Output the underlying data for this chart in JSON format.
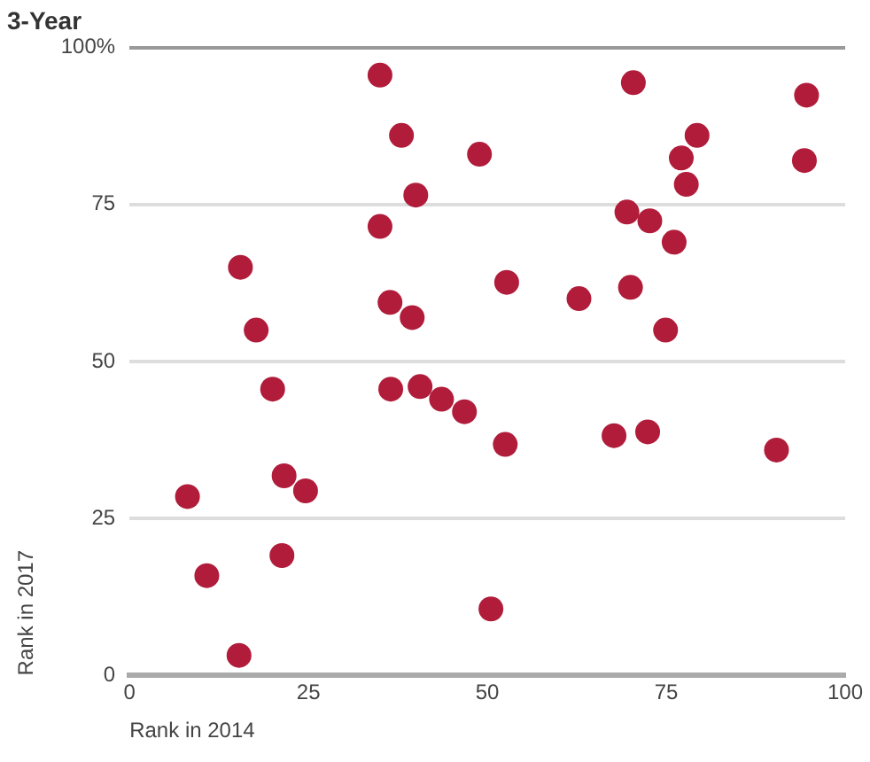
{
  "chart_data": {
    "type": "scatter",
    "title": "3-Year",
    "xlabel": "Rank in 2014",
    "ylabel": "Rank in 2017",
    "x": [
      35,
      38,
      40,
      35,
      15.5,
      17.7,
      36.4,
      39.5,
      20,
      36.5,
      40.6,
      43.6,
      46.8,
      52.5,
      67.7,
      72.4,
      90.4,
      50.5,
      21.6,
      24.6,
      8.1,
      21.3,
      10.8,
      15.3,
      70.4,
      94.6,
      48.9,
      79.3,
      77.1,
      77.8,
      94.3,
      69.5,
      72.7,
      76.1,
      52.7,
      62.8,
      70,
      74.9
    ],
    "series": [
      {
        "color": "#b01c3a",
        "values": [
          95.6,
          86,
          76.5,
          71.5,
          65,
          55,
          59.4,
          57,
          45.6,
          45.6,
          46,
          44,
          42,
          36.8,
          38.2,
          38.8,
          35.9,
          10.6,
          31.8,
          29.4,
          28.5,
          19.1,
          15.9,
          3.2,
          94.4,
          92.4,
          83,
          86,
          82.4,
          78.2,
          82,
          73.8,
          72.4,
          69,
          62.6,
          60,
          61.8,
          55
        ]
      }
    ],
    "xlim": [
      0,
      100
    ],
    "xticks": [
      0,
      25,
      50,
      75,
      100
    ],
    "ylim": [
      0,
      100
    ],
    "yticks": [
      0,
      25,
      50,
      {
        "value": 75,
        "label": "75"
      },
      {
        "value": 100,
        "label": "100%"
      }
    ],
    "grid": "y",
    "marker": "circle",
    "legend": false
  }
}
